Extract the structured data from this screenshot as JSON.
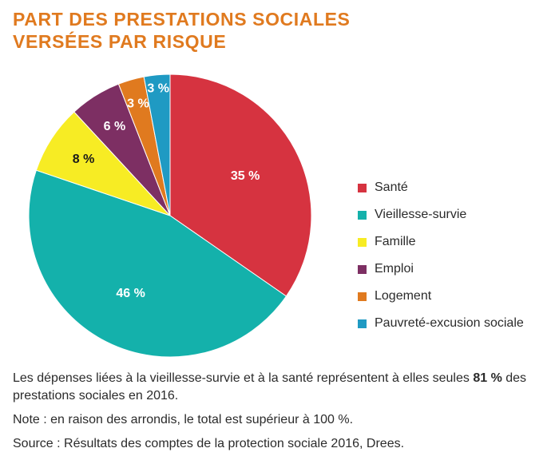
{
  "title": {
    "line1": "PART DES PRESTATIONS SOCIALES",
    "line2": "VERSÉES PAR RISQUE"
  },
  "chart_data": {
    "type": "pie",
    "title": "PART DES PRESTATIONS SOCIALES VERSÉES PAR RISQUE",
    "unit": "%",
    "legend_position": "right",
    "slices": [
      {
        "name": "Santé",
        "value": 35,
        "label": "35 %",
        "color": "#d63340"
      },
      {
        "name": "Vieillesse-survie",
        "value": 46,
        "label": "46 %",
        "color": "#14b1ab"
      },
      {
        "name": "Famille",
        "value": 8,
        "label": "8 %",
        "color": "#f7ec24"
      },
      {
        "name": "Emploi",
        "value": 6,
        "label": "6 %",
        "color": "#7d2f63"
      },
      {
        "name": "Logement",
        "value": 3,
        "label": "3 %",
        "color": "#e07a1f"
      },
      {
        "name": "Pauvreté-excusion sociale",
        "value": 3,
        "label": "3 %",
        "color": "#1f9ac3"
      }
    ]
  },
  "notes": {
    "text_before": "Les dépenses liées à la vieillesse-survie et à la santé représentent à elles seules ",
    "highlight": "81 %",
    "text_after": " des prestations sociales en 2016.",
    "note": "Note : en raison des arrondis, le total est supérieur à 100 %.",
    "source": "Source : Résultats des comptes de la protection sociale 2016, Drees."
  }
}
